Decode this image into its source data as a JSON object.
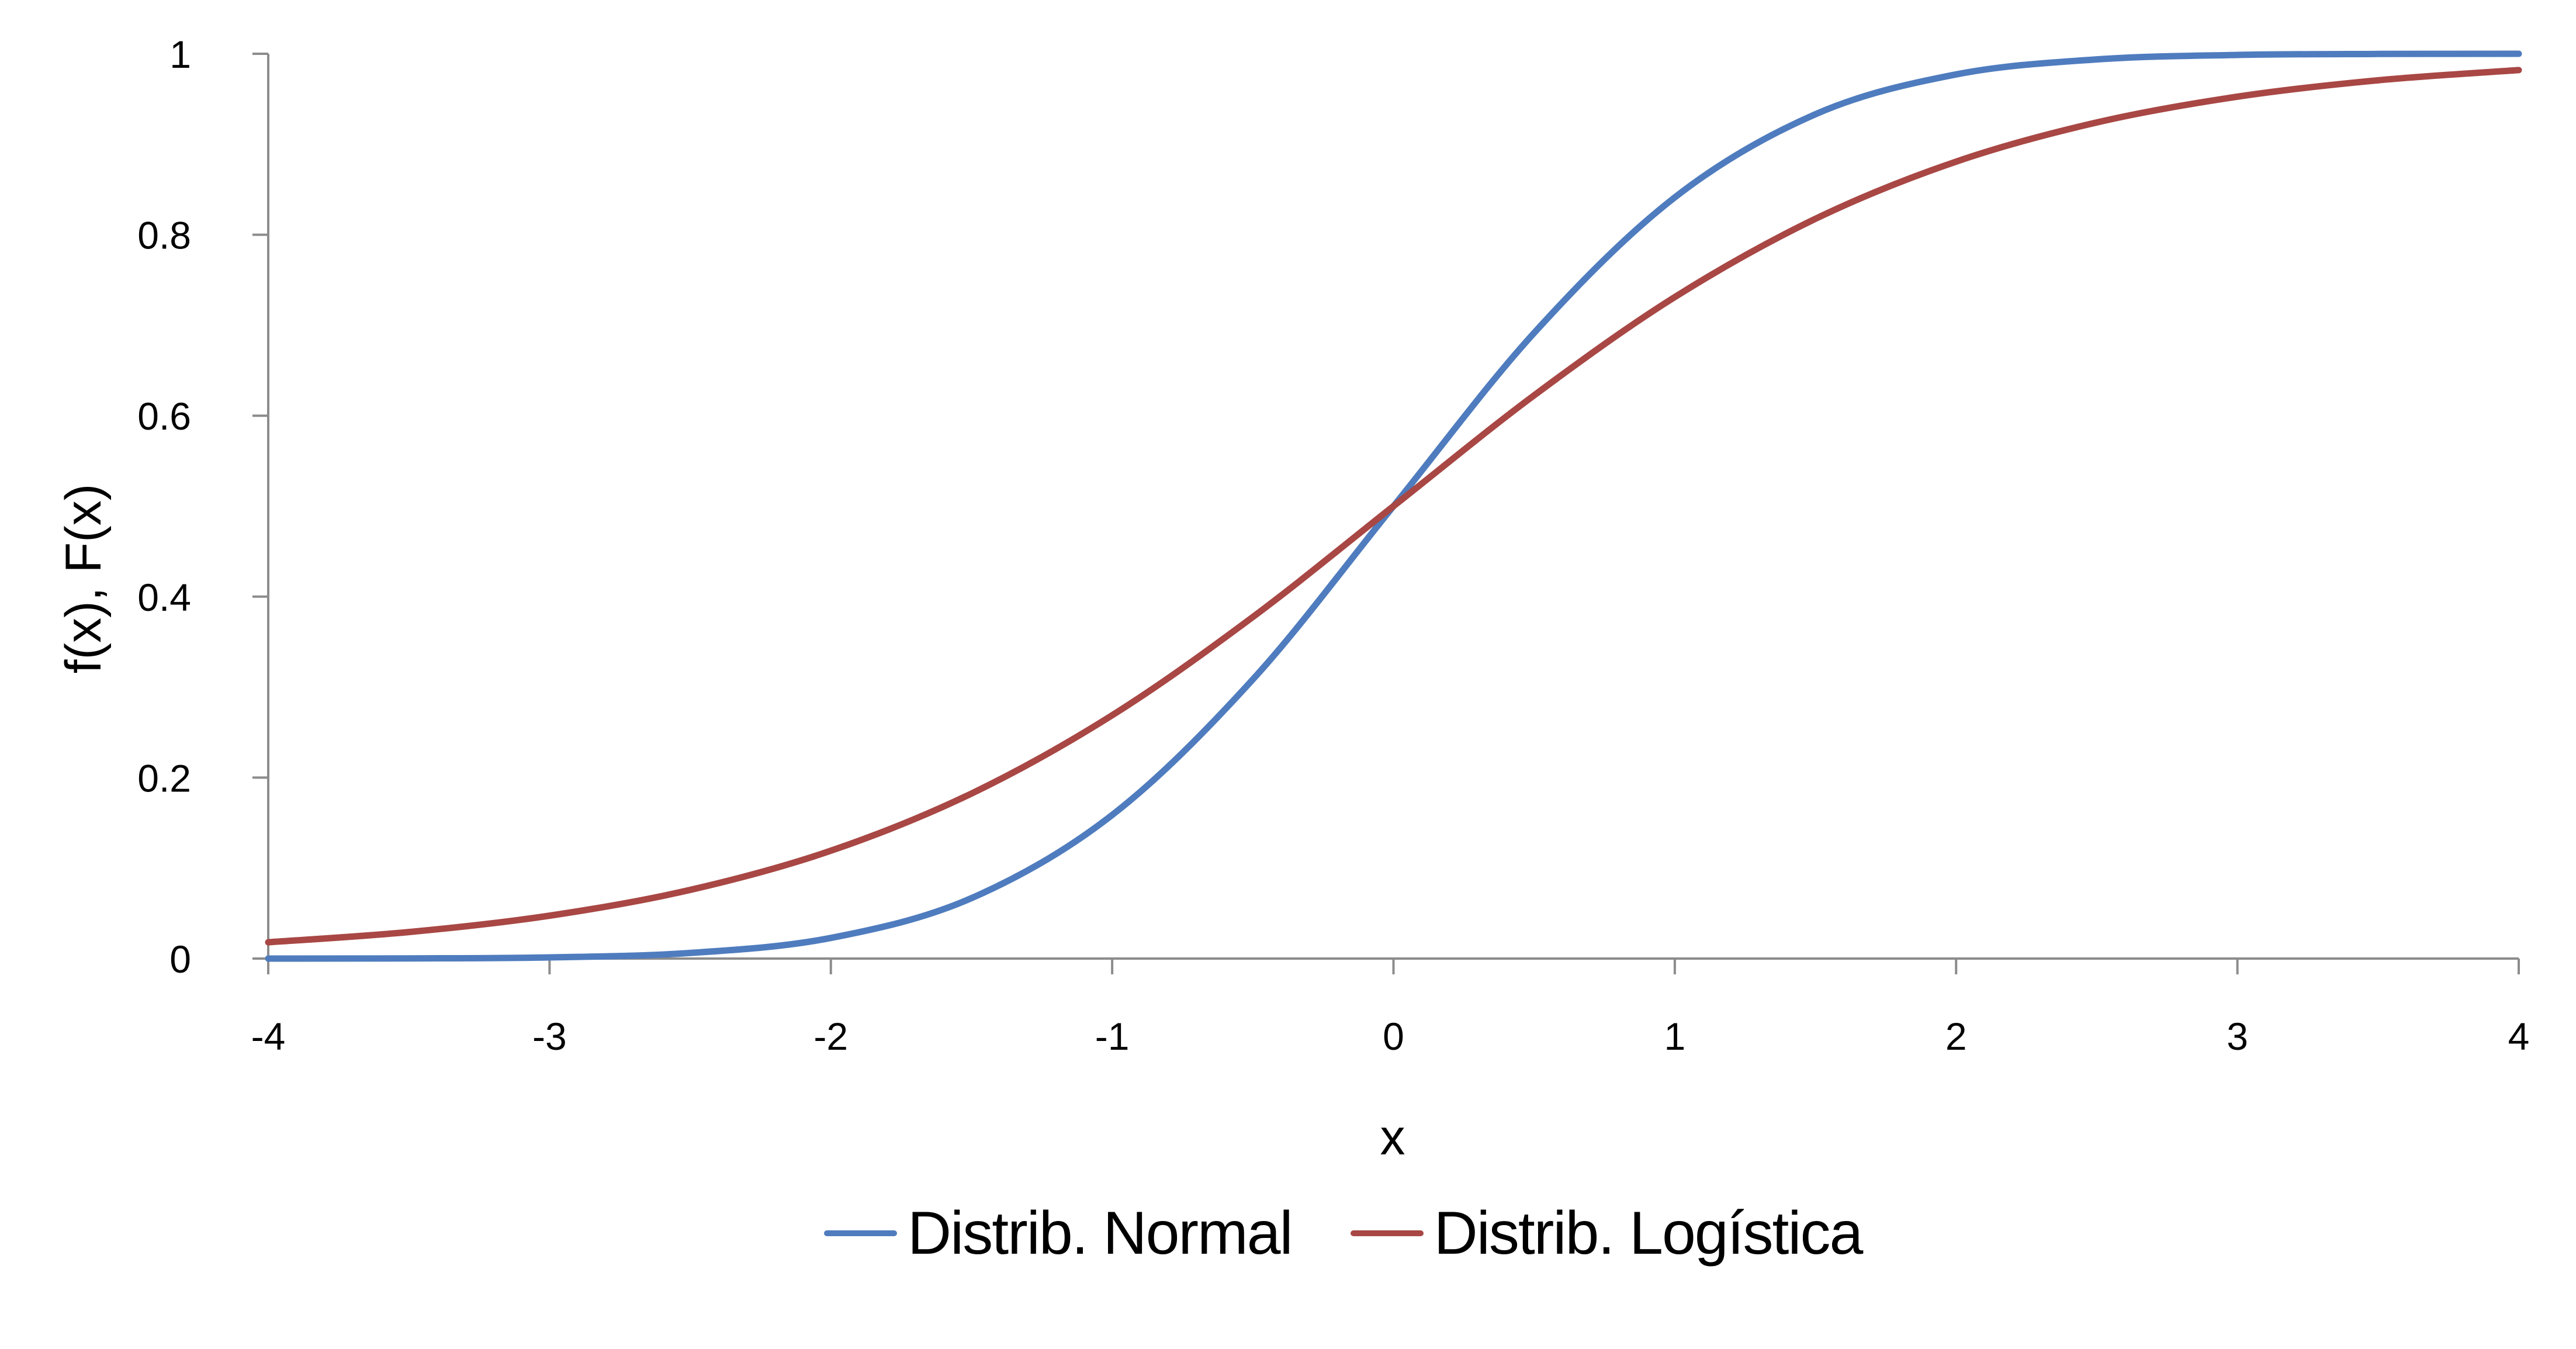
{
  "chart_data": {
    "type": "line",
    "title": "",
    "xlabel": "x",
    "ylabel": "f(x), F(x)",
    "xlim": [
      -4,
      4
    ],
    "ylim": [
      0,
      1
    ],
    "grid": false,
    "legend_position": "bottom",
    "x_ticks": [
      "-4",
      "-3",
      "-2",
      "-1",
      "0",
      "1",
      "2",
      "3",
      "4"
    ],
    "y_ticks": [
      "0",
      "0.2",
      "0.4",
      "0.6",
      "0.8",
      "1"
    ],
    "x": [
      -4,
      -3.5,
      -3,
      -2.5,
      -2,
      -1.5,
      -1,
      -0.5,
      0,
      0.5,
      1,
      1.5,
      2,
      2.5,
      3,
      3.5,
      4
    ],
    "series": [
      {
        "name": "Distrib. Normal",
        "color": "#4F7CBE",
        "values": [
          0.0,
          0.0002,
          0.0013,
          0.0062,
          0.0228,
          0.0668,
          0.1587,
          0.3085,
          0.5,
          0.6915,
          0.8413,
          0.9332,
          0.9772,
          0.9938,
          0.9987,
          0.9998,
          1.0
        ]
      },
      {
        "name": "Distrib. Logística",
        "color": "#A84744",
        "values": [
          0.018,
          0.0293,
          0.0474,
          0.0759,
          0.1192,
          0.1824,
          0.2689,
          0.3775,
          0.5,
          0.6225,
          0.7311,
          0.8176,
          0.8808,
          0.9241,
          0.9526,
          0.9707,
          0.982
        ]
      }
    ]
  },
  "legend": {
    "items": [
      {
        "label": "Distrib. Normal",
        "color": "#4F7CBE"
      },
      {
        "label": "Distrib. Logística",
        "color": "#A84744"
      }
    ]
  },
  "axes": {
    "axis_color": "#8C8C8C"
  }
}
